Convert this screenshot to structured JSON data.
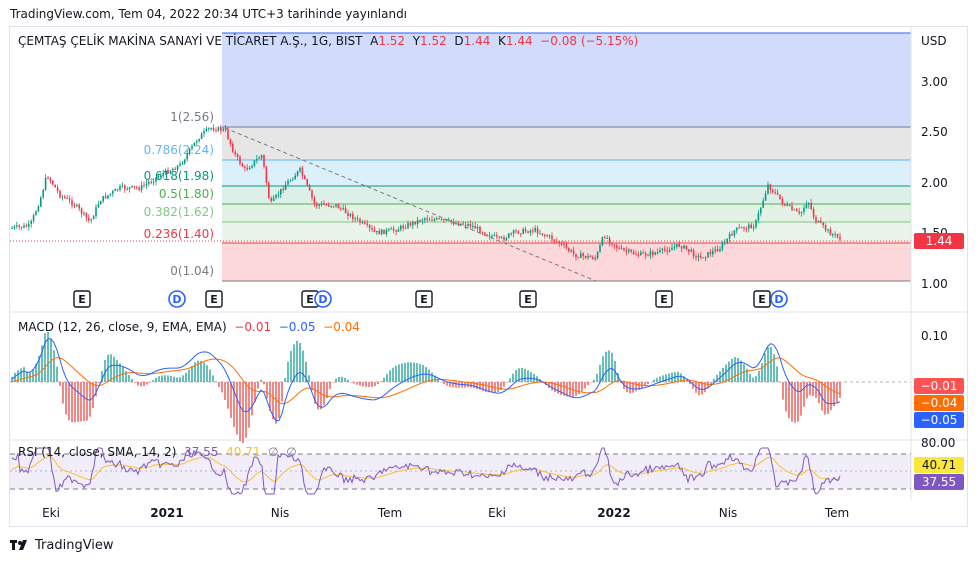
{
  "caption": "TradingView.com, Tem 04, 2022 20:34 UTC+3 tarihinde yayınlandı",
  "legend": {
    "symbol": "ÇEMTAŞ ÇELİK MAKİNA SANAYİ VE TİCARET A.Ş., 1G, BIST",
    "a_label": "A",
    "a_val": "1.52",
    "y_label": "Y",
    "y_val": "1.52",
    "d_label": "D",
    "d_val": "1.44",
    "k_label": "K",
    "k_val": "1.44",
    "change": "−0.08 (−5.15%)"
  },
  "currency": "USD",
  "price_axis": [
    "3.00",
    "2.50",
    "2.00",
    "1.50",
    "1.00"
  ],
  "last_price": "1.44",
  "fib_levels": [
    {
      "label": "1(2.56)",
      "color": "#787b86"
    },
    {
      "label": "0.786(2.24)",
      "color": "#64b5f6"
    },
    {
      "label": "0.618(1.98)",
      "color": "#089981"
    },
    {
      "label": "0.5(1.80)",
      "color": "#4caf50"
    },
    {
      "label": "0.382(1.62)",
      "color": "#81c784"
    },
    {
      "label": "0.236(1.40)",
      "color": "#f23645"
    },
    {
      "label": "0(1.04)",
      "color": "#787b86"
    }
  ],
  "event_markers": [
    {
      "label": "E"
    },
    {
      "label": "D"
    },
    {
      "label": "E"
    },
    {
      "label": "E"
    },
    {
      "label": "D"
    },
    {
      "label": "E"
    },
    {
      "label": "E"
    },
    {
      "label": "E"
    },
    {
      "label": "E"
    },
    {
      "label": "D"
    }
  ],
  "macd": {
    "title": "MACD (12, 26, close, 9, EMA, EMA)",
    "hist": "−0.01",
    "macd": "−0.05",
    "signal": "−0.04",
    "axis": [
      "0.10"
    ],
    "tags": [
      "−0.01",
      "−0.04",
      "−0.05"
    ]
  },
  "rsi": {
    "title": "RSI (14, close, SMA, 14, 2)",
    "rsi": "37.55",
    "ma": "40.71",
    "n1": "∅",
    "n2": "∅",
    "axis": [
      "80.00"
    ],
    "tags": [
      "40.71",
      "37.55"
    ]
  },
  "time_axis": [
    {
      "label": "Eki",
      "bold": false
    },
    {
      "label": "2021",
      "bold": true
    },
    {
      "label": "Nis",
      "bold": false
    },
    {
      "label": "Tem",
      "bold": false
    },
    {
      "label": "Eki",
      "bold": false
    },
    {
      "label": "2022",
      "bold": true
    },
    {
      "label": "Nis",
      "bold": false
    },
    {
      "label": "Tem",
      "bold": false
    }
  ],
  "brand": "TradingView",
  "colors": {
    "up": "#089981",
    "down": "#f23645",
    "macd": "#2962ff",
    "signal": "#ff6d00",
    "rsi": "#7e57c2",
    "rsi_ma": "#fbc02d"
  }
}
